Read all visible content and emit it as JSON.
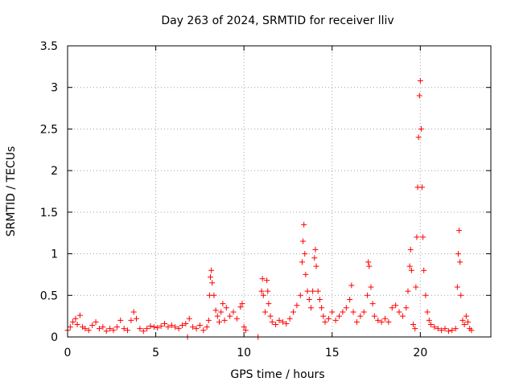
{
  "chart_data": {
    "type": "scatter",
    "title": "Day 263 of 2024, SRMTID for receiver lliv",
    "xlabel": "GPS time / hours",
    "ylabel": "SRMTID / TECUs",
    "xlim": [
      0,
      24
    ],
    "ylim": [
      0,
      3.5
    ],
    "xticks": [
      0,
      5,
      10,
      15,
      20
    ],
    "yticks": [
      0,
      0.5,
      1,
      1.5,
      2,
      2.5,
      3,
      3.5
    ],
    "xtick_labels": [
      "0",
      "5",
      "10",
      "15",
      "20"
    ],
    "ytick_labels": [
      "0",
      "0.5",
      "1",
      "1.5",
      "2",
      "2.5",
      "3",
      "3.5"
    ],
    "grid": true,
    "marker": "+",
    "colors": {
      "series": "#ff0000"
    },
    "series": [
      {
        "name": "SRMTID",
        "points": [
          [
            0.0,
            0.08
          ],
          [
            0.15,
            0.12
          ],
          [
            0.3,
            0.18
          ],
          [
            0.45,
            0.22
          ],
          [
            0.55,
            0.15
          ],
          [
            0.7,
            0.26
          ],
          [
            0.85,
            0.12
          ],
          [
            1.0,
            0.1
          ],
          [
            1.2,
            0.08
          ],
          [
            1.4,
            0.14
          ],
          [
            1.6,
            0.18
          ],
          [
            1.8,
            0.1
          ],
          [
            2.0,
            0.12
          ],
          [
            2.2,
            0.07
          ],
          [
            2.4,
            0.1
          ],
          [
            2.6,
            0.08
          ],
          [
            2.8,
            0.12
          ],
          [
            3.0,
            0.2
          ],
          [
            3.2,
            0.1
          ],
          [
            3.4,
            0.08
          ],
          [
            3.6,
            0.2
          ],
          [
            3.75,
            0.3
          ],
          [
            3.9,
            0.22
          ],
          [
            4.1,
            0.1
          ],
          [
            4.3,
            0.07
          ],
          [
            4.5,
            0.1
          ],
          [
            4.7,
            0.13
          ],
          [
            4.9,
            0.12
          ],
          [
            5.1,
            0.11
          ],
          [
            5.3,
            0.13
          ],
          [
            5.5,
            0.16
          ],
          [
            5.7,
            0.12
          ],
          [
            5.9,
            0.14
          ],
          [
            6.1,
            0.12
          ],
          [
            6.3,
            0.1
          ],
          [
            6.5,
            0.14
          ],
          [
            6.7,
            0.16
          ],
          [
            6.8,
            0.0
          ],
          [
            6.9,
            0.22
          ],
          [
            7.1,
            0.12
          ],
          [
            7.3,
            0.1
          ],
          [
            7.5,
            0.14
          ],
          [
            7.7,
            0.08
          ],
          [
            7.9,
            0.12
          ],
          [
            8.0,
            0.2
          ],
          [
            8.05,
            0.5
          ],
          [
            8.1,
            0.72
          ],
          [
            8.15,
            0.8
          ],
          [
            8.2,
            0.65
          ],
          [
            8.3,
            0.5
          ],
          [
            8.4,
            0.32
          ],
          [
            8.5,
            0.25
          ],
          [
            8.6,
            0.18
          ],
          [
            8.7,
            0.3
          ],
          [
            8.8,
            0.4
          ],
          [
            8.9,
            0.2
          ],
          [
            9.0,
            0.35
          ],
          [
            9.2,
            0.25
          ],
          [
            9.4,
            0.3
          ],
          [
            9.6,
            0.22
          ],
          [
            9.8,
            0.36
          ],
          [
            9.9,
            0.4
          ],
          [
            10.0,
            0.12
          ],
          [
            10.1,
            0.08
          ],
          [
            10.8,
            0.0
          ],
          [
            11.0,
            0.55
          ],
          [
            11.05,
            0.7
          ],
          [
            11.1,
            0.5
          ],
          [
            11.2,
            0.3
          ],
          [
            11.3,
            0.68
          ],
          [
            11.35,
            0.55
          ],
          [
            11.4,
            0.4
          ],
          [
            11.5,
            0.25
          ],
          [
            11.6,
            0.18
          ],
          [
            11.8,
            0.15
          ],
          [
            12.0,
            0.2
          ],
          [
            12.2,
            0.18
          ],
          [
            12.4,
            0.16
          ],
          [
            12.6,
            0.22
          ],
          [
            12.8,
            0.3
          ],
          [
            13.0,
            0.38
          ],
          [
            13.2,
            0.5
          ],
          [
            13.3,
            0.9
          ],
          [
            13.35,
            1.15
          ],
          [
            13.4,
            1.35
          ],
          [
            13.45,
            1.0
          ],
          [
            13.5,
            0.75
          ],
          [
            13.6,
            0.55
          ],
          [
            13.7,
            0.45
          ],
          [
            13.8,
            0.35
          ],
          [
            13.9,
            0.55
          ],
          [
            14.0,
            0.95
          ],
          [
            14.05,
            1.05
          ],
          [
            14.1,
            0.85
          ],
          [
            14.2,
            0.55
          ],
          [
            14.3,
            0.45
          ],
          [
            14.4,
            0.35
          ],
          [
            14.5,
            0.25
          ],
          [
            14.6,
            0.18
          ],
          [
            14.8,
            0.22
          ],
          [
            15.0,
            0.3
          ],
          [
            15.2,
            0.2
          ],
          [
            15.4,
            0.25
          ],
          [
            15.6,
            0.3
          ],
          [
            15.8,
            0.35
          ],
          [
            16.0,
            0.45
          ],
          [
            16.1,
            0.62
          ],
          [
            16.2,
            0.3
          ],
          [
            16.4,
            0.18
          ],
          [
            16.6,
            0.25
          ],
          [
            16.8,
            0.3
          ],
          [
            17.0,
            0.5
          ],
          [
            17.05,
            0.9
          ],
          [
            17.1,
            0.85
          ],
          [
            17.2,
            0.6
          ],
          [
            17.3,
            0.4
          ],
          [
            17.4,
            0.25
          ],
          [
            17.6,
            0.2
          ],
          [
            17.8,
            0.18
          ],
          [
            18.0,
            0.22
          ],
          [
            18.2,
            0.18
          ],
          [
            18.4,
            0.35
          ],
          [
            18.6,
            0.38
          ],
          [
            18.8,
            0.3
          ],
          [
            19.0,
            0.25
          ],
          [
            19.2,
            0.35
          ],
          [
            19.3,
            0.55
          ],
          [
            19.4,
            0.85
          ],
          [
            19.45,
            1.05
          ],
          [
            19.5,
            0.8
          ],
          [
            19.6,
            0.15
          ],
          [
            19.7,
            0.1
          ],
          [
            19.75,
            0.6
          ],
          [
            19.8,
            1.2
          ],
          [
            19.85,
            1.8
          ],
          [
            19.9,
            2.4
          ],
          [
            19.95,
            2.9
          ],
          [
            20.0,
            3.08
          ],
          [
            20.05,
            2.5
          ],
          [
            20.1,
            1.8
          ],
          [
            20.15,
            1.2
          ],
          [
            20.2,
            0.8
          ],
          [
            20.3,
            0.5
          ],
          [
            20.4,
            0.3
          ],
          [
            20.5,
            0.2
          ],
          [
            20.6,
            0.15
          ],
          [
            20.8,
            0.12
          ],
          [
            21.0,
            0.1
          ],
          [
            21.2,
            0.08
          ],
          [
            21.4,
            0.1
          ],
          [
            21.6,
            0.07
          ],
          [
            21.8,
            0.08
          ],
          [
            22.0,
            0.1
          ],
          [
            22.1,
            0.6
          ],
          [
            22.15,
            1.0
          ],
          [
            22.2,
            1.28
          ],
          [
            22.25,
            0.9
          ],
          [
            22.3,
            0.5
          ],
          [
            22.4,
            0.2
          ],
          [
            22.5,
            0.15
          ],
          [
            22.6,
            0.25
          ],
          [
            22.7,
            0.18
          ],
          [
            22.8,
            0.1
          ],
          [
            22.9,
            0.08
          ]
        ]
      }
    ]
  }
}
